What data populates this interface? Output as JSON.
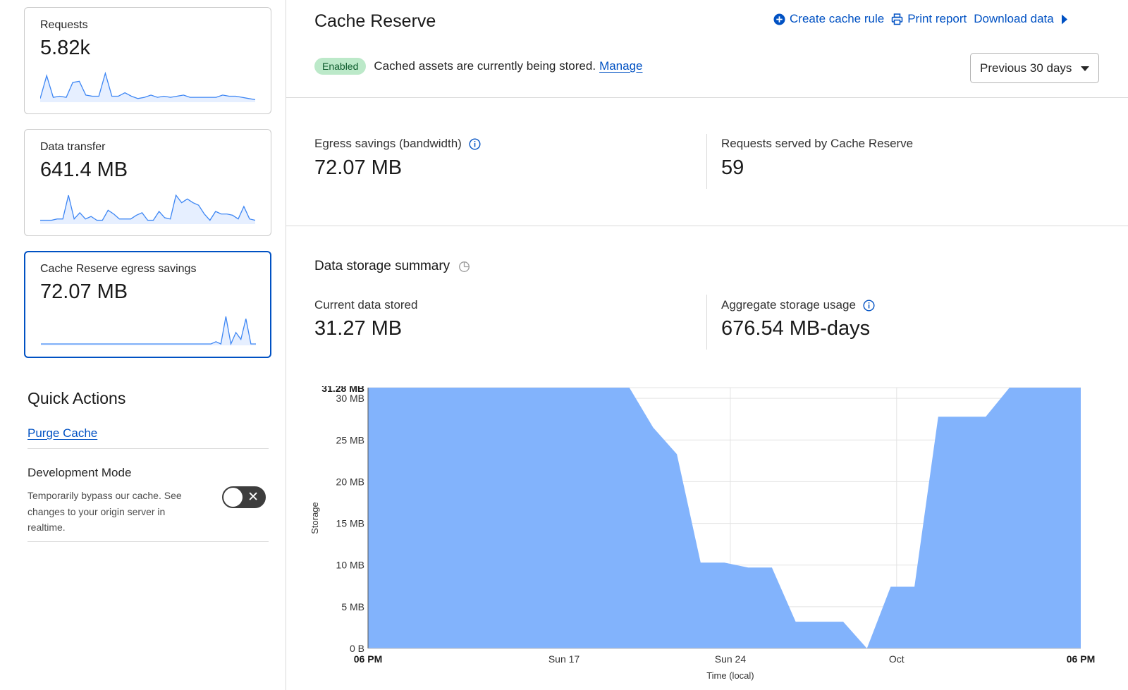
{
  "metrics": [
    {
      "label": "Requests",
      "value": "5.82k",
      "spark": [
        2,
        22,
        3,
        4,
        3,
        16,
        17,
        5,
        4,
        4,
        24,
        4,
        4,
        7,
        4,
        2,
        3,
        5,
        3,
        4,
        3,
        4,
        5,
        3,
        3,
        3,
        3,
        3,
        5,
        4,
        4,
        3,
        2,
        1
      ]
    },
    {
      "label": "Data transfer",
      "value": "641.4 MB",
      "spark": [
        2,
        2,
        2,
        3,
        3,
        22,
        3,
        8,
        3,
        5,
        2,
        2,
        10,
        7,
        3,
        3,
        3,
        6,
        8,
        2,
        2,
        9,
        4,
        3,
        22,
        16,
        19,
        16,
        14,
        7,
        2,
        9,
        7,
        7,
        6,
        3,
        13,
        3,
        2
      ]
    },
    {
      "label": "Cache Reserve egress savings",
      "value": "72.07 MB",
      "spark": [
        0,
        0,
        0,
        0,
        0,
        0,
        0,
        0,
        0,
        0,
        0,
        0,
        0,
        0,
        0,
        0,
        0,
        0,
        0,
        0,
        0,
        0,
        0,
        0,
        0,
        0,
        0,
        0,
        0,
        0,
        0,
        0,
        0,
        0,
        0,
        2,
        0,
        24,
        0,
        10,
        4,
        22,
        0,
        0
      ]
    }
  ],
  "quick_actions": {
    "title": "Quick Actions",
    "purge_label": "Purge Cache",
    "dev_mode": {
      "title": "Development Mode",
      "description": "Temporarily bypass our cache. See changes to your origin server in realtime.",
      "toggle_symbol": "✕",
      "enabled": false
    }
  },
  "header": {
    "title": "Cache Reserve",
    "actions": [
      {
        "label": "Create cache rule",
        "icon": "plus-circle-icon"
      },
      {
        "label": "Print report",
        "icon": "printer-icon"
      },
      {
        "label": "Download data",
        "icon": "caret-right-icon"
      }
    ],
    "status_badge": "Enabled",
    "status_text": "Cached assets are currently being stored.",
    "manage_label": "Manage",
    "range_select": "Previous 30 days"
  },
  "stats": {
    "egress_label": "Egress savings (bandwidth)",
    "egress_value": "72.07 MB",
    "requests_label": "Requests served by Cache Reserve",
    "requests_value": "59"
  },
  "storage": {
    "title": "Data storage summary",
    "current_label": "Current data stored",
    "current_value": "31.27 MB",
    "aggregate_label": "Aggregate storage usage",
    "aggregate_value": "676.54 MB-days"
  },
  "chart_data": {
    "type": "area",
    "ylabel": "Storage",
    "xlabel": "Time (local)",
    "y_max_label": "31.28 MB",
    "ylim": [
      0,
      31.28
    ],
    "y_ticks": [
      {
        "value": 0,
        "label": "0 B"
      },
      {
        "value": 5,
        "label": "5 MB"
      },
      {
        "value": 10,
        "label": "10 MB"
      },
      {
        "value": 15,
        "label": "15 MB"
      },
      {
        "value": 20,
        "label": "20 MB"
      },
      {
        "value": 25,
        "label": "25 MB"
      },
      {
        "value": 30,
        "label": "30 MB"
      }
    ],
    "x_ticks": [
      {
        "t": 0,
        "label": "06 PM",
        "bold": true
      },
      {
        "t": 8.25,
        "label": "Sun 17",
        "bold": false
      },
      {
        "t": 15.25,
        "label": "Sun 24",
        "bold": false
      },
      {
        "t": 22.25,
        "label": "Oct",
        "bold": false
      },
      {
        "t": 30,
        "label": "06 PM",
        "bold": true
      }
    ],
    "grid_lines_x": [
      15.25,
      22.25
    ],
    "color": "#82b3fc",
    "series": [
      {
        "t": [
          0,
          11,
          12,
          13,
          14,
          15,
          16,
          17,
          18,
          19,
          20,
          21,
          22,
          23,
          24,
          25,
          26,
          27,
          28,
          29,
          30
        ],
        "values": [
          31.28,
          31.28,
          26.5,
          23.3,
          10.3,
          10.3,
          9.7,
          9.7,
          3.2,
          3.2,
          3.2,
          0,
          7.4,
          7.4,
          27.8,
          27.8,
          27.8,
          31.28,
          31.28,
          31.28,
          31.28
        ]
      }
    ]
  }
}
